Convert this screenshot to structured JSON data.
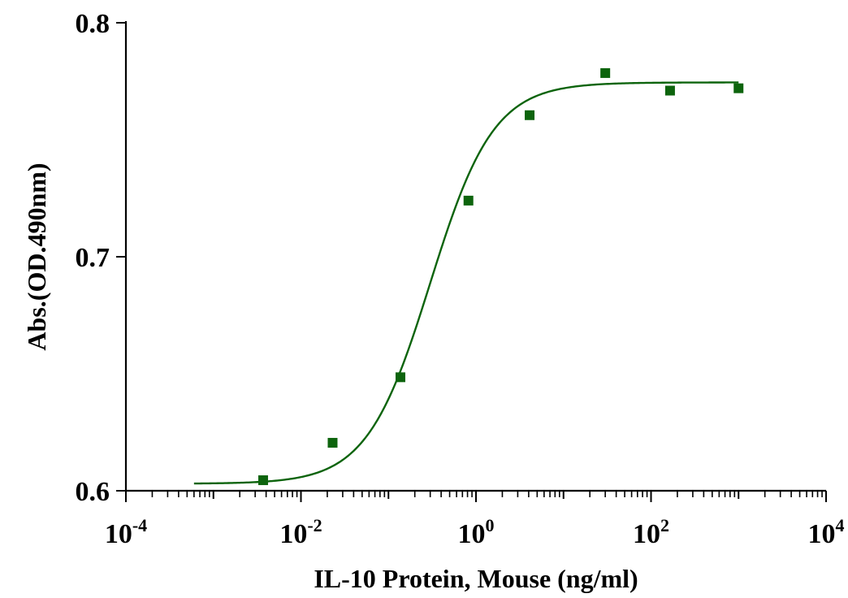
{
  "chart_data": {
    "type": "scatter",
    "xlabel": "IL-10 Protein, Mouse  (ng/ml)",
    "ylabel": "Abs.(OD.490nm)",
    "xscale": "log10",
    "xlim": [
      0.0001,
      10000
    ],
    "ylim": [
      0.6,
      0.8
    ],
    "x_ticks": [
      {
        "base": "10",
        "exp": "-4"
      },
      {
        "base": "10",
        "exp": "-2"
      },
      {
        "base": "10",
        "exp": "0"
      },
      {
        "base": "10",
        "exp": "2"
      },
      {
        "base": "10",
        "exp": "4"
      }
    ],
    "x_tick_values": [
      0.0001,
      0.01,
      1,
      100,
      10000
    ],
    "y_ticks": [
      "0.6",
      "0.7",
      "0.8"
    ],
    "y_tick_values": [
      0.6,
      0.7,
      0.8
    ],
    "grid": false,
    "legend": "none",
    "series": [
      {
        "color": "#0d640d",
        "marker": "square",
        "points": [
          {
            "x": 0.0037,
            "y": 0.6045
          },
          {
            "x": 0.023,
            "y": 0.6205
          },
          {
            "x": 0.137,
            "y": 0.6485
          },
          {
            "x": 0.82,
            "y": 0.724
          },
          {
            "x": 4.1,
            "y": 0.7605
          },
          {
            "x": 30,
            "y": 0.7785
          },
          {
            "x": 165,
            "y": 0.771
          },
          {
            "x": 1000,
            "y": 0.772
          }
        ],
        "fit": {
          "model": "4PL",
          "bottom": 0.603,
          "top": 0.7745,
          "ec50": 0.3,
          "hill": 1.2,
          "x_range": [
            0.0006,
            1000
          ]
        }
      }
    ]
  }
}
